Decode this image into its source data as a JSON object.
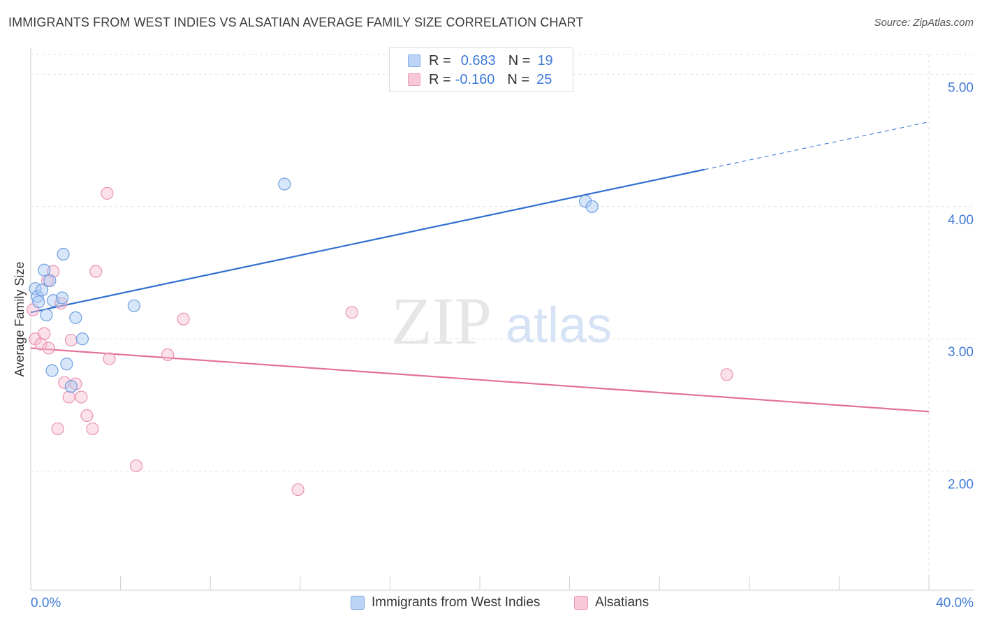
{
  "title": "IMMIGRANTS FROM WEST INDIES VS ALSATIAN AVERAGE FAMILY SIZE CORRELATION CHART",
  "source": "Source: ZipAtlas.com",
  "watermark": {
    "zip": "ZIP",
    "atlas": "atlas"
  },
  "legend": {
    "rows": [
      {
        "r_label": "R =",
        "r_value": "0.683",
        "n_label": "N =",
        "n_value": "19"
      },
      {
        "r_label": "R =",
        "r_value": "-0.160",
        "n_label": "N =",
        "n_value": "25"
      }
    ]
  },
  "bottom_legend": {
    "series1": "Immigrants from West Indies",
    "series2": "Alsatians"
  },
  "colors": {
    "blue_fill": "#a9c8f2",
    "blue_stroke": "#6f9fe0",
    "blue_line": "#2f6fd1",
    "pink_fill": "#f7bdd0",
    "pink_stroke": "#ea92b1",
    "pink_line": "#e3709b",
    "axis_text": "#3f7bd9",
    "grid": "#e2e2e2"
  },
  "chart_data": {
    "type": "scatter",
    "title": "IMMIGRANTS FROM WEST INDIES VS ALSATIAN AVERAGE FAMILY SIZE CORRELATION CHART",
    "xlabel": "",
    "ylabel": "Average Family Size",
    "xlim": [
      0,
      40
    ],
    "ylim": [
      1.1,
      5.15
    ],
    "x_tick_labels": [
      "0.0%",
      "40.0%"
    ],
    "y_ticks": [
      2.0,
      3.0,
      4.0,
      5.0
    ],
    "y_tick_labels": [
      "2.00",
      "3.00",
      "4.00",
      "5.00"
    ],
    "grid": true,
    "series": [
      {
        "name": "Immigrants from West Indies",
        "points": [
          [
            0.2,
            3.38
          ],
          [
            0.3,
            3.32
          ],
          [
            0.35,
            3.28
          ],
          [
            0.5,
            3.37
          ],
          [
            0.6,
            3.52
          ],
          [
            0.7,
            3.18
          ],
          [
            0.85,
            3.44
          ],
          [
            0.95,
            2.76
          ],
          [
            1.0,
            3.29
          ],
          [
            1.4,
            3.31
          ],
          [
            1.45,
            3.64
          ],
          [
            1.6,
            2.81
          ],
          [
            1.8,
            2.64
          ],
          [
            2.0,
            3.16
          ],
          [
            2.3,
            3.0
          ],
          [
            4.6,
            3.25
          ],
          [
            11.3,
            4.17
          ],
          [
            24.7,
            4.04
          ],
          [
            25.0,
            4.0
          ]
        ],
        "trend": {
          "x0": 0,
          "y0": 3.2,
          "x1": 30,
          "y1": 4.28,
          "dash_to_x": 40,
          "dash_to_y": 4.64
        }
      },
      {
        "name": "Alsatians",
        "points": [
          [
            0.1,
            3.22
          ],
          [
            0.2,
            3.0
          ],
          [
            0.45,
            2.96
          ],
          [
            0.6,
            3.04
          ],
          [
            0.75,
            3.44
          ],
          [
            0.8,
            2.93
          ],
          [
            1.0,
            3.51
          ],
          [
            1.2,
            2.32
          ],
          [
            1.35,
            3.27
          ],
          [
            1.5,
            2.67
          ],
          [
            1.7,
            2.56
          ],
          [
            1.8,
            2.99
          ],
          [
            2.0,
            2.66
          ],
          [
            2.25,
            2.56
          ],
          [
            2.5,
            2.42
          ],
          [
            2.75,
            2.32
          ],
          [
            2.9,
            3.51
          ],
          [
            3.4,
            4.1
          ],
          [
            3.5,
            2.85
          ],
          [
            4.7,
            2.04
          ],
          [
            6.1,
            2.88
          ],
          [
            6.8,
            3.15
          ],
          [
            11.9,
            1.86
          ],
          [
            14.3,
            3.2
          ],
          [
            31.0,
            2.73
          ]
        ],
        "trend": {
          "x0": 0,
          "y0": 2.93,
          "x1": 40,
          "y1": 2.45
        }
      }
    ]
  }
}
